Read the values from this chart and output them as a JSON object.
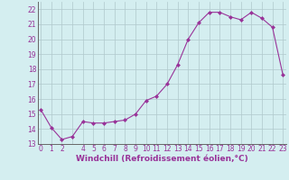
{
  "x": [
    0,
    1,
    2,
    3,
    4,
    5,
    6,
    7,
    8,
    9,
    10,
    11,
    12,
    13,
    14,
    15,
    16,
    17,
    18,
    19,
    20,
    21,
    22,
    23
  ],
  "y": [
    15.3,
    14.1,
    13.3,
    13.5,
    14.5,
    14.4,
    14.4,
    14.5,
    14.6,
    15.0,
    15.9,
    16.2,
    17.0,
    18.3,
    20.0,
    21.1,
    21.8,
    21.8,
    21.5,
    21.3,
    21.8,
    21.4,
    20.8,
    17.6
  ],
  "line_color": "#993399",
  "marker": "D",
  "marker_size": 2.0,
  "bg_color": "#d4eef0",
  "grid_color": "#b0c8cc",
  "xlabel": "Windchill (Refroidissement éolien,°C)",
  "xlabel_fontsize": 6.5,
  "tick_fontsize": 5.5,
  "ylim_min": 13,
  "ylim_max": 22.5,
  "xlim_min": -0.3,
  "xlim_max": 23.3,
  "yticks": [
    13,
    14,
    15,
    16,
    17,
    18,
    19,
    20,
    21,
    22
  ],
  "xtick_labels": [
    "0",
    "1",
    "2",
    "",
    "4",
    "5",
    "6",
    "7",
    "8",
    "9",
    "10",
    "11",
    "12",
    "13",
    "14",
    "15",
    "16",
    "17",
    "18",
    "19",
    "20",
    "21",
    "22",
    "23"
  ],
  "xtick_positions": [
    0,
    1,
    2,
    3,
    4,
    5,
    6,
    7,
    8,
    9,
    10,
    11,
    12,
    13,
    14,
    15,
    16,
    17,
    18,
    19,
    20,
    21,
    22,
    23
  ]
}
